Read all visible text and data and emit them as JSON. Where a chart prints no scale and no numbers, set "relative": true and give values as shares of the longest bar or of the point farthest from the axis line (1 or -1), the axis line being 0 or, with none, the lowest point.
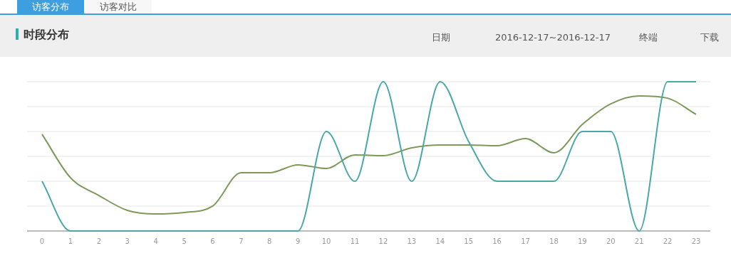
{
  "chart_data": {
    "type": "line",
    "title": "时段分布",
    "annotations": [
      "访客分布",
      "访客对比",
      "日期",
      "2016-12-17~2016-12-17",
      "终端",
      "下载"
    ],
    "categories": [
      "0",
      "1",
      "2",
      "3",
      "4",
      "5",
      "6",
      "7",
      "8",
      "9",
      "10",
      "11",
      "12",
      "13",
      "14",
      "15",
      "16",
      "17",
      "18",
      "19",
      "20",
      "21",
      "22",
      "23"
    ],
    "relative": true,
    "grid": "y",
    "series": [
      {
        "color": "#7d9a5c",
        "values": [
          0.648,
          0.357,
          0.238,
          0.138,
          0.114,
          0.124,
          0.167,
          0.39,
          0.39,
          0.443,
          0.419,
          0.51,
          0.505,
          0.557,
          0.576,
          0.576,
          0.571,
          0.619,
          0.524,
          0.714,
          0.852,
          0.905,
          0.89,
          0.781
        ]
      },
      {
        "color": "#4aa8a8",
        "values": [
          0.333,
          0,
          0,
          0,
          0,
          0,
          0,
          0,
          0,
          0,
          0.667,
          0.333,
          1,
          0.333,
          1,
          0.6,
          0.333,
          0.333,
          0.333,
          0.667,
          0.667,
          0,
          1,
          1
        ]
      }
    ]
  }
}
